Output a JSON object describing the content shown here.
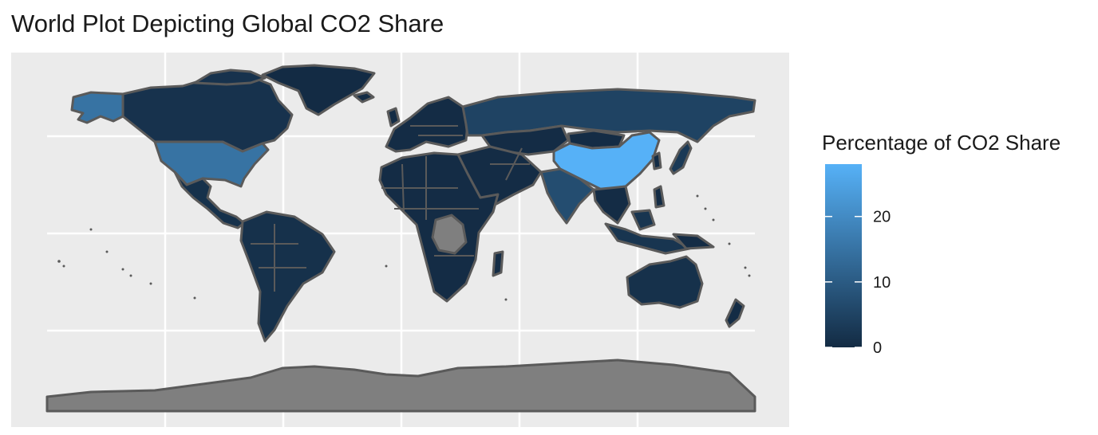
{
  "chart_data": {
    "type": "choropleth",
    "title": "World Plot Depicting Global CO2 Share",
    "legend": {
      "title": "Percentage of CO2 Share",
      "position": "right",
      "ticks": [
        0,
        10,
        20
      ],
      "range": [
        0,
        28
      ],
      "color_low": "#132b43",
      "color_high": "#56b1f7"
    },
    "na_color": "#7f7f7f",
    "border_color": "#5a5a5a",
    "panel_background": "#ebebeb",
    "grid": true,
    "regions": [
      {
        "name": "China",
        "value": 28
      },
      {
        "name": "United States",
        "value": 15
      },
      {
        "name": "India",
        "value": 7
      },
      {
        "name": "Russia",
        "value": 5
      },
      {
        "name": "Japan",
        "value": 3
      },
      {
        "name": "Indonesia",
        "value": 2
      },
      {
        "name": "Canada",
        "value": 1.5
      },
      {
        "name": "Brazil",
        "value": 1.3
      },
      {
        "name": "Australia",
        "value": 1.2
      },
      {
        "name": "Mexico",
        "value": 1.2
      },
      {
        "name": "Greenland",
        "value": 0.1
      },
      {
        "name": "Antarctica",
        "value": null
      },
      {
        "name": "Dem. Rep. Congo",
        "value": null
      }
    ]
  }
}
